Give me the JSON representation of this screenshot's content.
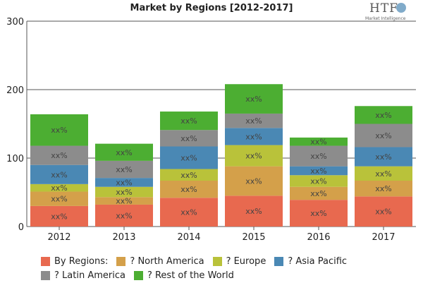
{
  "logo": {
    "text": "HTF",
    "subtext": "Market Intelligence"
  },
  "chart_data": {
    "type": "bar",
    "stacked": true,
    "title": "Market by Regions [2012-2017]",
    "xlabel": "",
    "ylabel": "",
    "ylim": [
      0,
      300
    ],
    "yticks": [
      0,
      100,
      200,
      300
    ],
    "grid": true,
    "legend_position": "bottom",
    "legend_title": "By Regions:",
    "categories": [
      "2012",
      "2013",
      "2014",
      "2015",
      "2016",
      "2017"
    ],
    "data_label": "xx%",
    "series": [
      {
        "name": "By Regions:",
        "color": "#e8694f",
        "values": [
          30,
          32,
          42,
          45,
          39,
          44
        ]
      },
      {
        "name": "? North America",
        "color": "#d4a04a",
        "values": [
          21,
          11,
          25,
          43,
          19,
          23
        ]
      },
      {
        "name": "? Europe",
        "color": "#b9c23a",
        "values": [
          11,
          15,
          17,
          31,
          17,
          21
        ]
      },
      {
        "name": "? Asia Pacific",
        "color": "#4a88b4",
        "values": [
          28,
          13,
          33,
          25,
          13,
          28
        ]
      },
      {
        "name": "? Latin America",
        "color": "#8c8c8c",
        "values": [
          28,
          25,
          24,
          21,
          30,
          34
        ]
      },
      {
        "name": "? Rest of the World",
        "color": "#4cae32",
        "values": [
          46,
          25,
          27,
          43,
          12,
          26
        ]
      }
    ]
  }
}
